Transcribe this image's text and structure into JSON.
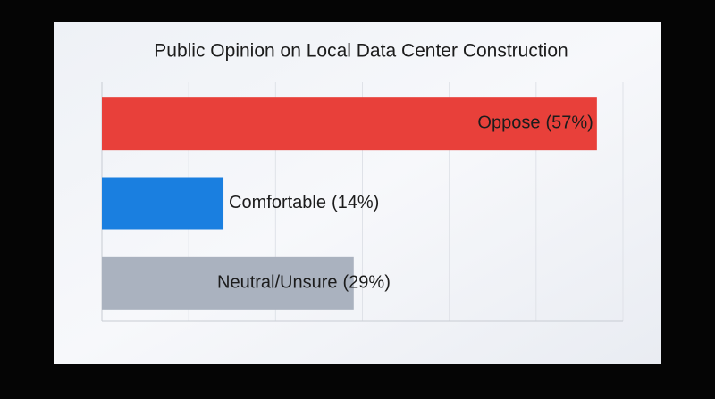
{
  "chart_data": {
    "type": "bar",
    "orientation": "horizontal",
    "title": "Public Opinion on Local Data Center Construction",
    "categories": [
      "Oppose",
      "Comfortable",
      "Neutral/Unsure"
    ],
    "values": [
      57,
      14,
      29
    ],
    "value_labels": [
      "(57%)",
      "(14%)",
      "(29%)"
    ],
    "colors": [
      "#e8403a",
      "#1a7fe0",
      "#aab2bf"
    ],
    "xlim": [
      0,
      60
    ],
    "xticks": [
      0,
      10,
      20,
      30,
      40,
      50,
      60
    ],
    "grid": true
  }
}
